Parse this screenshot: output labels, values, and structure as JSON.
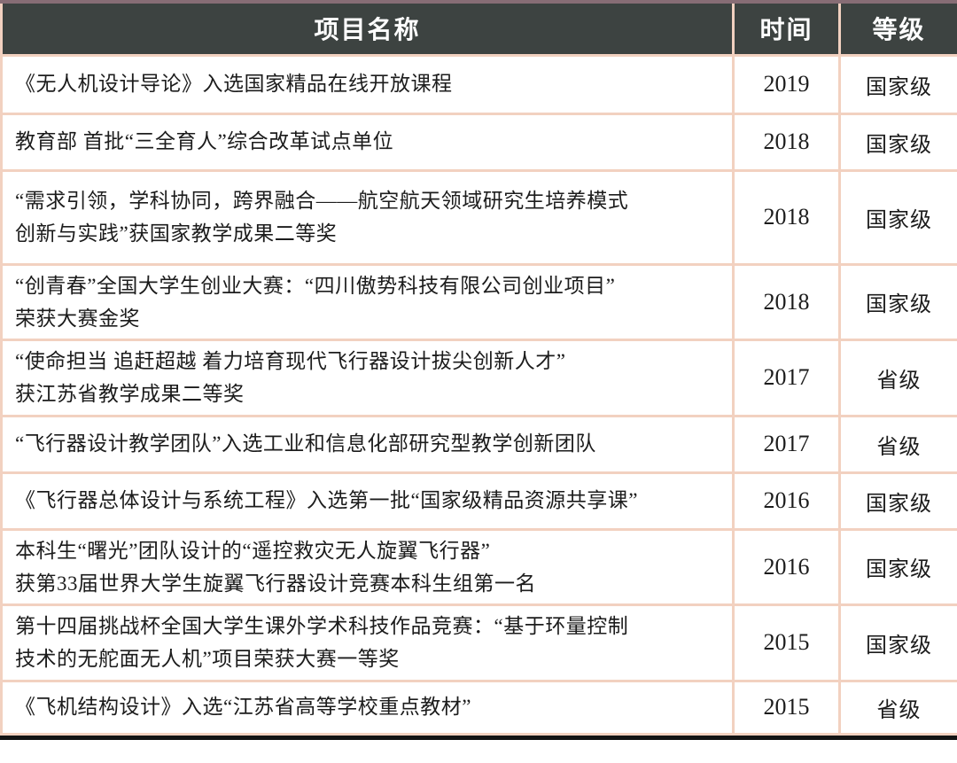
{
  "colors": {
    "header_background": "#3d4341",
    "header_text": "#ffffff",
    "grid_border": "#f2d1c0",
    "top_accent_bar": "#876d75",
    "bottom_accent_bar": "#141414",
    "body_text": "#1c1c1c",
    "row_background": "#ffffff"
  },
  "table": {
    "columns": [
      {
        "label": "项目名称"
      },
      {
        "label": "时间"
      },
      {
        "label": "等级"
      }
    ],
    "rows": [
      {
        "name": "《无人机设计导论》入选国家精品在线开放课程",
        "year": "2019",
        "level": "国家级"
      },
      {
        "name": "教育部 首批“三全育人”综合改革试点单位",
        "year": "2018",
        "level": "国家级"
      },
      {
        "name": "“需求引领，学科协同，跨界融合——航空航天领域研究生培养模式\n创新与实践”获国家教学成果二等奖",
        "year": "2018",
        "level": "国家级"
      },
      {
        "name": "“创青春”全国大学生创业大赛：“四川傲势科技有限公司创业项目”\n荣获大赛金奖",
        "year": "2018",
        "level": "国家级"
      },
      {
        "name": "“使命担当 追赶超越 着力培育现代飞行器设计拔尖创新人才”\n获江苏省教学成果二等奖",
        "year": "2017",
        "level": "省级"
      },
      {
        "name": "“飞行器设计教学团队”入选工业和信息化部研究型教学创新团队",
        "year": "2017",
        "level": "省级"
      },
      {
        "name": "《飞行器总体设计与系统工程》入选第一批“国家级精品资源共享课”",
        "year": "2016",
        "level": "国家级"
      },
      {
        "name": "本科生“曙光”团队设计的“遥控救灾无人旋翼飞行器”\n获第33届世界大学生旋翼飞行器设计竞赛本科生组第一名",
        "year": "2016",
        "level": "国家级"
      },
      {
        "name": "第十四届挑战杯全国大学生课外学术科技作品竞赛：“基于环量控制\n技术的无舵面无人机”项目荣获大赛一等奖",
        "year": "2015",
        "level": "国家级"
      },
      {
        "name": "《飞机结构设计》入选“江苏省高等学校重点教材”",
        "year": "2015",
        "level": "省级"
      }
    ]
  }
}
